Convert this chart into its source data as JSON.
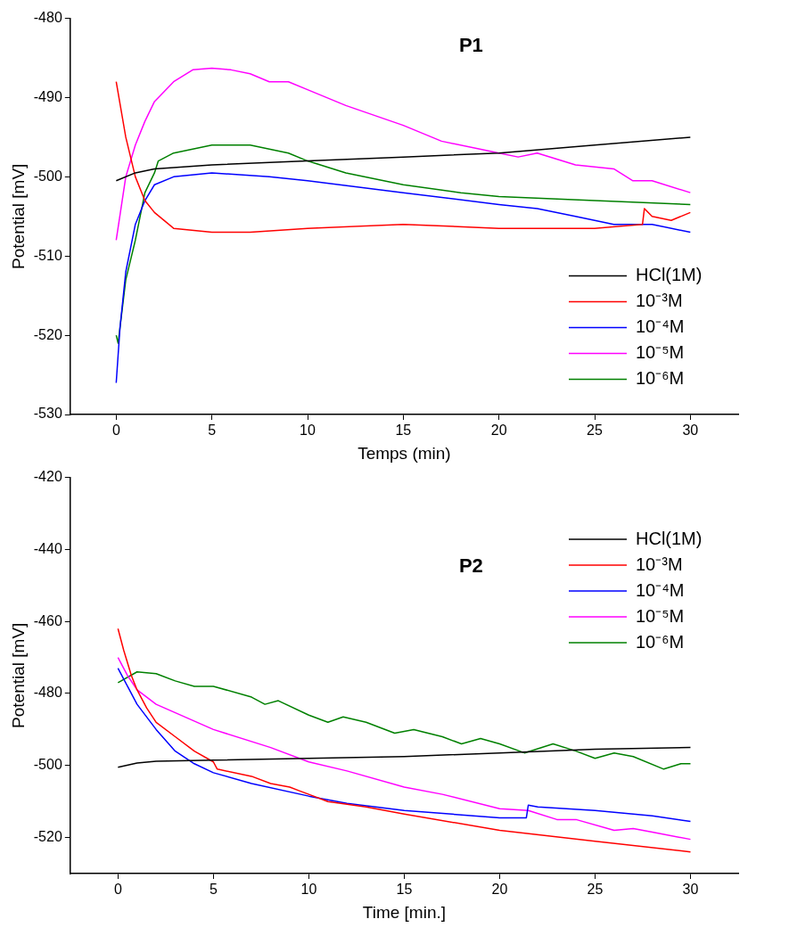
{
  "chart_data": [
    {
      "type": "line",
      "title": "P1",
      "xlabel": "Temps (min)",
      "ylabel": "Potential [mV]",
      "xlim": [
        -2.4,
        32.5
      ],
      "xticks": [
        0,
        5,
        10,
        15,
        20,
        25,
        30
      ],
      "ylim": [
        -530,
        -480
      ],
      "yticks": [
        -530,
        -520,
        -510,
        -500,
        -490,
        -480
      ],
      "grid": false,
      "legend": "bottom right",
      "marker": "none",
      "line_style": "solid",
      "series": [
        {
          "name": "HCl(1M)",
          "color": "#000000",
          "x": [
            0,
            1,
            2,
            5,
            10,
            15,
            20,
            25,
            30
          ],
          "values": [
            -500.5,
            -499.5,
            -499,
            -498.5,
            -498,
            -497.5,
            -497,
            -496,
            -495
          ]
        },
        {
          "name": "10⁻³M",
          "color": "#ff0000",
          "x": [
            0,
            0.5,
            1,
            1.5,
            2,
            3,
            5,
            7,
            10,
            15,
            20,
            25,
            27.5,
            27.6,
            28,
            29,
            30
          ],
          "values": [
            -488,
            -495,
            -500,
            -503,
            -504.5,
            -506.5,
            -507,
            -507,
            -506.5,
            -506,
            -506.5,
            -506.5,
            -506,
            -504,
            -505,
            -505.5,
            -504.5
          ]
        },
        {
          "name": "10⁻⁴M",
          "color": "#0000ff",
          "x": [
            0,
            0.2,
            0.5,
            1,
            1.5,
            2,
            3,
            5,
            8,
            10,
            15,
            20,
            22,
            24,
            26,
            28,
            30
          ],
          "values": [
            -526,
            -519,
            -512,
            -506,
            -503,
            -501,
            -500,
            -499.5,
            -500,
            -500.5,
            -502,
            -503.5,
            -504,
            -505,
            -506,
            -506,
            -507
          ]
        },
        {
          "name": "10⁻⁵M",
          "color": "#ff00ff",
          "x": [
            0,
            0.5,
            1,
            1.5,
            2,
            3,
            4,
            5,
            6,
            7,
            8,
            9,
            10,
            12,
            15,
            17,
            19,
            20,
            21,
            22,
            24,
            26,
            27,
            28,
            30
          ],
          "values": [
            -508,
            -500,
            -496,
            -493,
            -490.5,
            -488,
            -486.5,
            -486.3,
            -486.5,
            -487,
            -488,
            -488,
            -489,
            -491,
            -493.5,
            -495.5,
            -496.5,
            -497,
            -497.5,
            -497,
            -498.5,
            -499,
            -500.5,
            -500.5,
            -502
          ]
        },
        {
          "name": "10⁻⁶M",
          "color": "#008000",
          "x": [
            0,
            0.1,
            0.5,
            1,
            1.5,
            2,
            2.2,
            3,
            5,
            7,
            9,
            10,
            12,
            15,
            18,
            20,
            25,
            30
          ],
          "values": [
            -520,
            -521,
            -513,
            -508,
            -502,
            -499.5,
            -498,
            -497,
            -496,
            -496,
            -497,
            -498,
            -499.5,
            -501,
            -502,
            -502.5,
            -503,
            -503.5
          ]
        }
      ]
    },
    {
      "type": "line",
      "title": "P2",
      "xlabel": "Time [min.]",
      "ylabel": "Potential [mV]",
      "xlim": [
        -2.5,
        32.5
      ],
      "xticks": [
        0,
        5,
        10,
        15,
        20,
        25,
        30
      ],
      "ylim": [
        -530,
        -420
      ],
      "yticks": [
        -520,
        -500,
        -480,
        -460,
        -440,
        -420
      ],
      "grid": false,
      "legend": "top right",
      "marker": "none",
      "line_style": "solid",
      "series": [
        {
          "name": "HCl(1M)",
          "color": "#000000",
          "x": [
            0,
            1,
            2,
            5,
            10,
            15,
            20,
            25,
            30
          ],
          "values": [
            -500.5,
            -499.3,
            -498.8,
            -498.5,
            -498,
            -497.5,
            -496.5,
            -495.5,
            -495
          ]
        },
        {
          "name": "10⁻³M",
          "color": "#ff0000",
          "x": [
            0,
            0.3,
            0.7,
            1,
            1.5,
            2,
            3,
            4,
            5,
            5.2,
            7,
            8,
            9,
            9.5,
            10,
            11,
            13,
            15,
            20,
            25,
            30
          ],
          "values": [
            -462,
            -468,
            -475,
            -479,
            -484,
            -488,
            -492,
            -496,
            -499,
            -501,
            -503,
            -505,
            -506,
            -507,
            -508,
            -510,
            -511.5,
            -513.5,
            -518,
            -521,
            -524
          ]
        },
        {
          "name": "10⁻⁴M",
          "color": "#0000ff",
          "x": [
            0,
            0.5,
            1,
            2,
            3,
            4,
            5,
            7,
            10,
            12,
            15,
            20,
            21.4,
            21.5,
            22,
            25,
            28,
            30
          ],
          "values": [
            -473,
            -478,
            -483,
            -490,
            -496,
            -499.5,
            -502,
            -505,
            -508.5,
            -510.5,
            -512.5,
            -514.5,
            -514.5,
            -511,
            -511.5,
            -512.5,
            -514,
            -515.5
          ]
        },
        {
          "name": "10⁻⁵M",
          "color": "#ff00ff",
          "x": [
            0,
            0.5,
            1,
            2,
            5,
            8,
            10,
            12,
            15,
            17,
            20,
            21.5,
            23,
            24,
            26,
            27,
            28,
            30
          ],
          "values": [
            -470,
            -475,
            -479,
            -483,
            -490,
            -495,
            -499,
            -501.5,
            -506,
            -508,
            -512,
            -512.5,
            -515,
            -515,
            -518,
            -517.5,
            -518.5,
            -520.5
          ]
        },
        {
          "name": "10⁻⁶M",
          "color": "#008000",
          "x": [
            0,
            1,
            2,
            3,
            4,
            5,
            7,
            7.7,
            8.4,
            10,
            11,
            11.8,
            13,
            14.5,
            15.5,
            17,
            18,
            19,
            20,
            21.3,
            22.8,
            24,
            25,
            26,
            27,
            28.6,
            29.5,
            30
          ],
          "values": [
            -477,
            -474,
            -474.5,
            -476.5,
            -478,
            -478,
            -481,
            -483,
            -482,
            -486,
            -488,
            -486.5,
            -488,
            -491,
            -490,
            -492,
            -494,
            -492.5,
            -494,
            -496.5,
            -494,
            -496,
            -498,
            -496.5,
            -497.5,
            -501,
            -499.5,
            -499.5
          ]
        }
      ]
    }
  ]
}
